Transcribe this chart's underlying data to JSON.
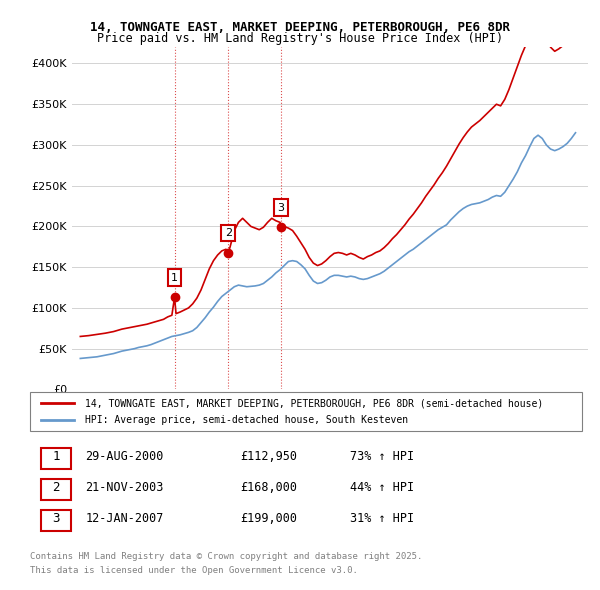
{
  "title1": "14, TOWNGATE EAST, MARKET DEEPING, PETERBOROUGH, PE6 8DR",
  "title2": "Price paid vs. HM Land Registry's House Price Index (HPI)",
  "legend_label1": "14, TOWNGATE EAST, MARKET DEEPING, PETERBOROUGH, PE6 8DR (semi-detached house)",
  "legend_label2": "HPI: Average price, semi-detached house, South Kesteven",
  "transactions": [
    {
      "num": 1,
      "date": "29-AUG-2000",
      "price": 112950,
      "pct": "73%",
      "dir": "↑",
      "year_x": 2000.66
    },
    {
      "num": 2,
      "date": "21-NOV-2003",
      "price": 168000,
      "pct": "44%",
      "dir": "↑",
      "year_x": 2003.89
    },
    {
      "num": 3,
      "date": "12-JAN-2007",
      "price": 199000,
      "pct": "31%",
      "dir": "↑",
      "year_x": 2007.04
    }
  ],
  "footnote1": "Contains HM Land Registry data © Crown copyright and database right 2025.",
  "footnote2": "This data is licensed under the Open Government Licence v3.0.",
  "red_color": "#cc0000",
  "blue_color": "#6699cc",
  "marker_box_color": "#cc0000",
  "ylim": [
    0,
    420000
  ],
  "xlim_left": 1994.5,
  "xlim_right": 2025.5,
  "hpi_data": {
    "years": [
      1995.0,
      1995.25,
      1995.5,
      1995.75,
      1996.0,
      1996.25,
      1996.5,
      1996.75,
      1997.0,
      1997.25,
      1997.5,
      1997.75,
      1998.0,
      1998.25,
      1998.5,
      1998.75,
      1999.0,
      1999.25,
      1999.5,
      1999.75,
      2000.0,
      2000.25,
      2000.5,
      2000.75,
      2001.0,
      2001.25,
      2001.5,
      2001.75,
      2002.0,
      2002.25,
      2002.5,
      2002.75,
      2003.0,
      2003.25,
      2003.5,
      2003.75,
      2004.0,
      2004.25,
      2004.5,
      2004.75,
      2005.0,
      2005.25,
      2005.5,
      2005.75,
      2006.0,
      2006.25,
      2006.5,
      2006.75,
      2007.0,
      2007.25,
      2007.5,
      2007.75,
      2008.0,
      2008.25,
      2008.5,
      2008.75,
      2009.0,
      2009.25,
      2009.5,
      2009.75,
      2010.0,
      2010.25,
      2010.5,
      2010.75,
      2011.0,
      2011.25,
      2011.5,
      2011.75,
      2012.0,
      2012.25,
      2012.5,
      2012.75,
      2013.0,
      2013.25,
      2013.5,
      2013.75,
      2014.0,
      2014.25,
      2014.5,
      2014.75,
      2015.0,
      2015.25,
      2015.5,
      2015.75,
      2016.0,
      2016.25,
      2016.5,
      2016.75,
      2017.0,
      2017.25,
      2017.5,
      2017.75,
      2018.0,
      2018.25,
      2018.5,
      2018.75,
      2019.0,
      2019.25,
      2019.5,
      2019.75,
      2020.0,
      2020.25,
      2020.5,
      2020.75,
      2021.0,
      2021.25,
      2021.5,
      2021.75,
      2022.0,
      2022.25,
      2022.5,
      2022.75,
      2023.0,
      2023.25,
      2023.5,
      2023.75,
      2024.0,
      2024.25,
      2024.5,
      2024.75
    ],
    "values": [
      38000,
      38500,
      39000,
      39500,
      40000,
      41000,
      42000,
      43000,
      44000,
      45500,
      47000,
      48000,
      49000,
      50000,
      51500,
      52500,
      53500,
      55000,
      57000,
      59000,
      61000,
      63000,
      65000,
      66000,
      67000,
      68500,
      70000,
      72000,
      76000,
      82000,
      88000,
      95000,
      101000,
      108000,
      114000,
      118000,
      122000,
      126000,
      128000,
      127000,
      126000,
      126500,
      127000,
      128000,
      130000,
      134000,
      138000,
      143000,
      147000,
      152000,
      157000,
      158000,
      157000,
      153000,
      148000,
      140000,
      133000,
      130000,
      131000,
      134000,
      138000,
      140000,
      140000,
      139000,
      138000,
      139000,
      138000,
      136000,
      135000,
      136000,
      138000,
      140000,
      142000,
      145000,
      149000,
      153000,
      157000,
      161000,
      165000,
      169000,
      172000,
      176000,
      180000,
      184000,
      188000,
      192000,
      196000,
      199000,
      202000,
      208000,
      213000,
      218000,
      222000,
      225000,
      227000,
      228000,
      229000,
      231000,
      233000,
      236000,
      238000,
      237000,
      242000,
      250000,
      258000,
      267000,
      278000,
      287000,
      298000,
      308000,
      312000,
      308000,
      300000,
      295000,
      293000,
      295000,
      298000,
      302000,
      308000,
      315000
    ]
  },
  "price_data": {
    "years": [
      1995.0,
      1995.5,
      1996.0,
      1996.5,
      1997.0,
      1997.5,
      1998.0,
      1998.5,
      1999.0,
      1999.5,
      2000.0,
      2000.25,
      2000.5,
      2000.66,
      2000.75,
      2001.0,
      2001.5,
      2001.75,
      2002.0,
      2002.25,
      2002.5,
      2002.75,
      2003.0,
      2003.25,
      2003.5,
      2003.75,
      2003.89,
      2004.0,
      2004.25,
      2004.5,
      2004.75,
      2005.0,
      2005.25,
      2005.5,
      2005.75,
      2006.0,
      2006.25,
      2006.5,
      2006.75,
      2007.0,
      2007.04,
      2007.25,
      2007.5,
      2007.75,
      2008.0,
      2008.25,
      2008.5,
      2008.75,
      2009.0,
      2009.25,
      2009.5,
      2009.75,
      2010.0,
      2010.25,
      2010.5,
      2010.75,
      2011.0,
      2011.25,
      2011.5,
      2011.75,
      2012.0,
      2012.25,
      2012.5,
      2012.75,
      2013.0,
      2013.25,
      2013.5,
      2013.75,
      2014.0,
      2014.25,
      2014.5,
      2014.75,
      2015.0,
      2015.25,
      2015.5,
      2015.75,
      2016.0,
      2016.25,
      2016.5,
      2016.75,
      2017.0,
      2017.25,
      2017.5,
      2017.75,
      2018.0,
      2018.25,
      2018.5,
      2018.75,
      2019.0,
      2019.25,
      2019.5,
      2019.75,
      2020.0,
      2020.25,
      2020.5,
      2020.75,
      2021.0,
      2021.25,
      2021.5,
      2021.75,
      2022.0,
      2022.25,
      2022.5,
      2022.75,
      2023.0,
      2023.25,
      2023.5,
      2023.75,
      2024.0,
      2024.25,
      2024.5,
      2024.75
    ],
    "values": [
      65000,
      66000,
      67500,
      69000,
      71000,
      74000,
      76000,
      78000,
      80000,
      83000,
      86000,
      89000,
      91000,
      112950,
      93000,
      95000,
      100000,
      105000,
      112000,
      122000,
      135000,
      148000,
      158000,
      165000,
      170000,
      172000,
      168000,
      175000,
      195000,
      205000,
      210000,
      205000,
      200000,
      198000,
      196000,
      199000,
      205000,
      210000,
      207000,
      205000,
      199000,
      200000,
      198000,
      195000,
      188000,
      180000,
      172000,
      162000,
      155000,
      152000,
      154000,
      158000,
      163000,
      167000,
      168000,
      167000,
      165000,
      167000,
      165000,
      162000,
      160000,
      163000,
      165000,
      168000,
      170000,
      174000,
      179000,
      185000,
      190000,
      196000,
      202000,
      209000,
      215000,
      222000,
      229000,
      237000,
      244000,
      251000,
      259000,
      266000,
      274000,
      283000,
      292000,
      301000,
      309000,
      316000,
      322000,
      326000,
      330000,
      335000,
      340000,
      345000,
      350000,
      348000,
      356000,
      368000,
      382000,
      396000,
      410000,
      422000,
      435000,
      448000,
      450000,
      442000,
      430000,
      420000,
      415000,
      418000,
      422000,
      428000,
      436000,
      445000
    ]
  }
}
